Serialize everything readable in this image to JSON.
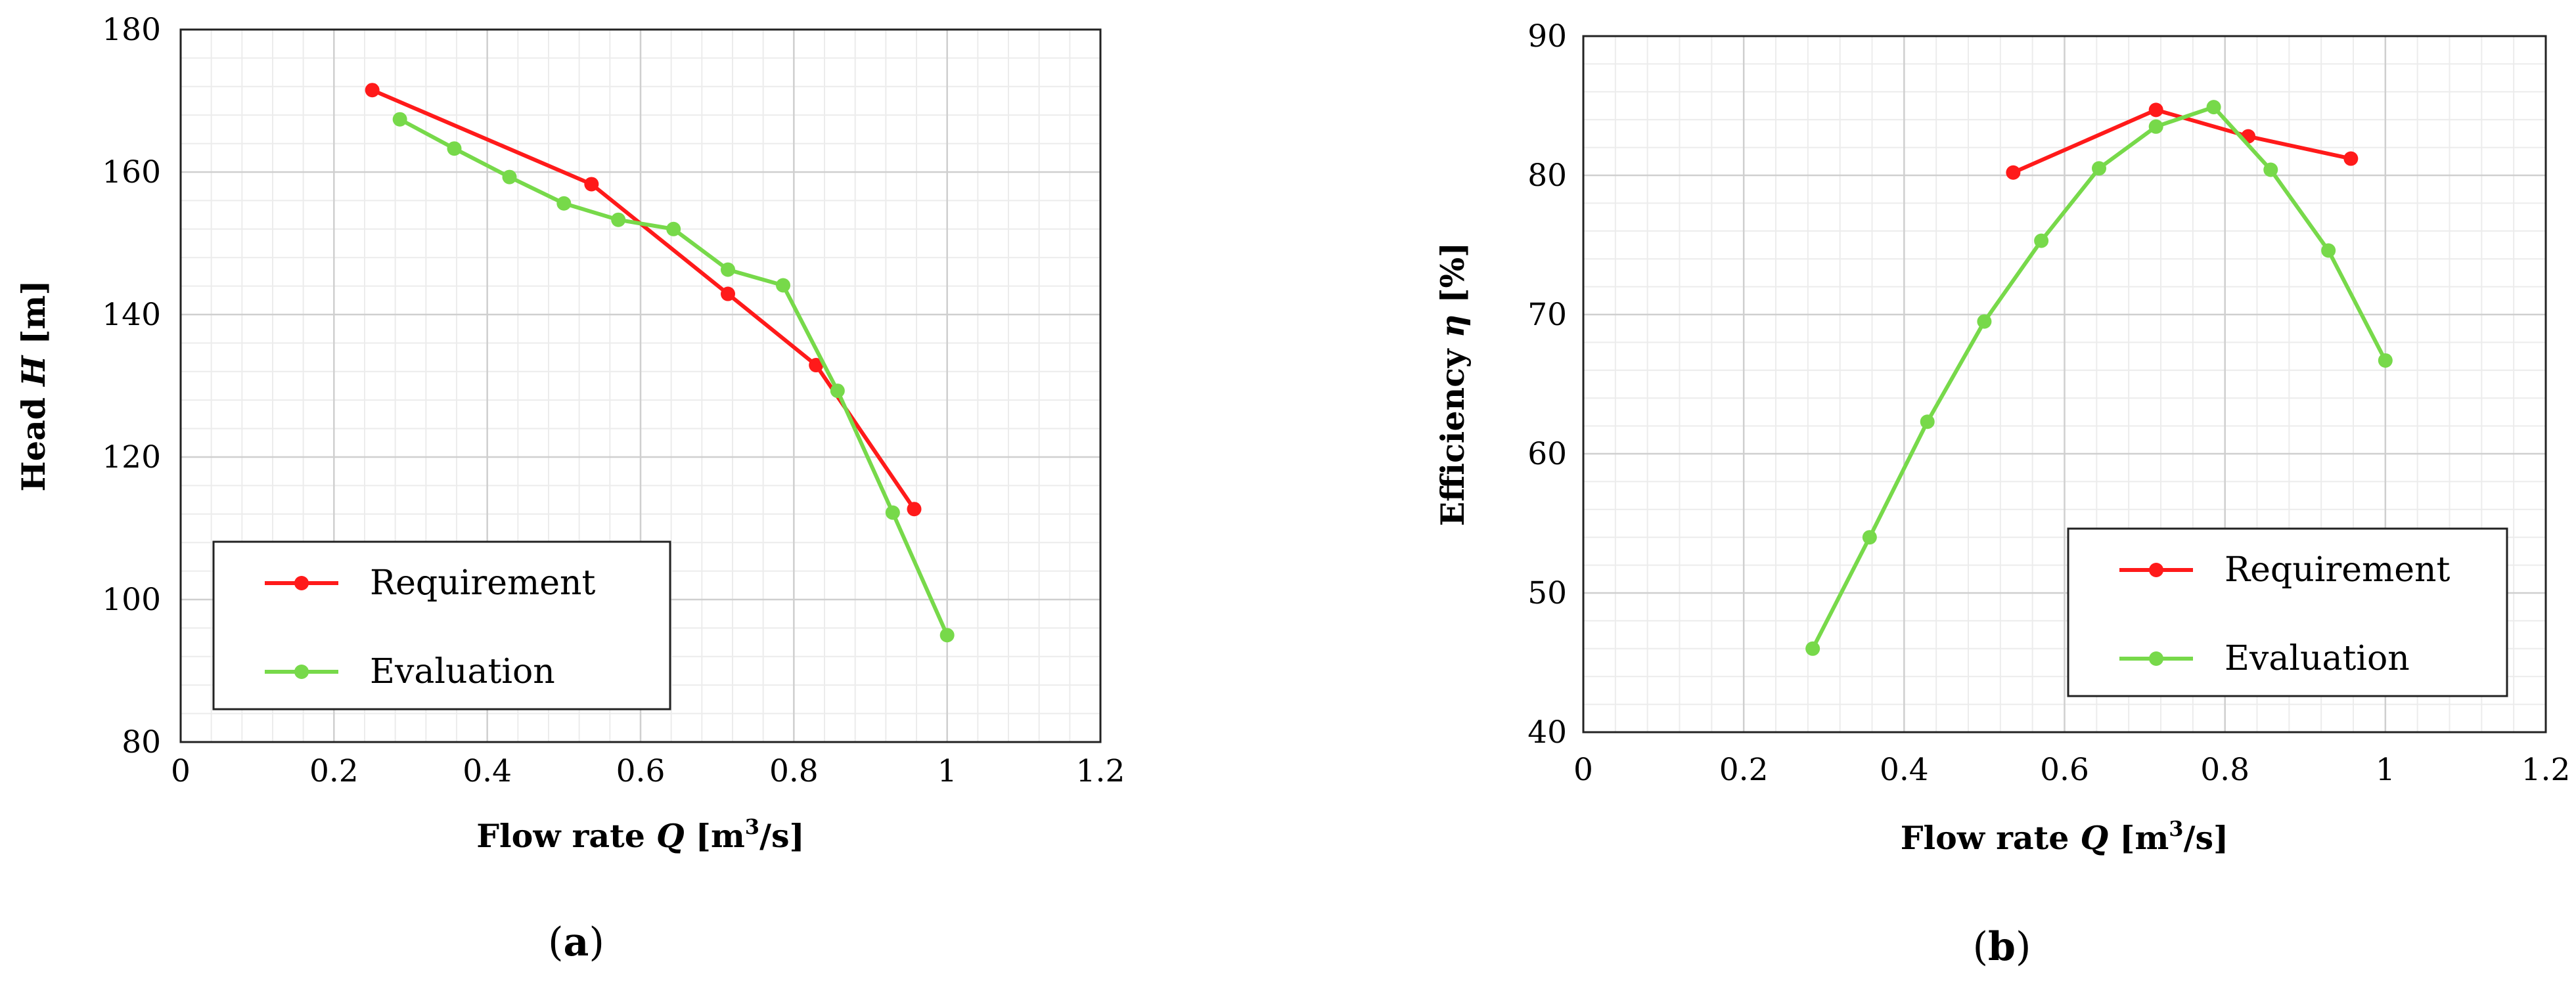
{
  "chart_data": [
    {
      "type": "line",
      "panel_label": "(a)",
      "xlabel": {
        "pre": "Flow rate ",
        "var": "Q",
        "mid": " [m",
        "sup": "3",
        "post": "/s]"
      },
      "ylabel": {
        "pre": "Head ",
        "var": "H",
        "post": " [m]"
      },
      "xlim": [
        0,
        1.2
      ],
      "ylim": [
        80,
        180
      ],
      "xticks": [
        0,
        0.2,
        0.4,
        0.6,
        0.8,
        1,
        1.2
      ],
      "xtick_labels": [
        "0",
        "0.2",
        "0.4",
        "0.6",
        "0.8",
        "1",
        "1.2"
      ],
      "yticks": [
        80,
        100,
        120,
        140,
        160,
        180
      ],
      "ytick_labels": [
        "80",
        "100",
        "120",
        "140",
        "160",
        "180"
      ],
      "grid": true,
      "legend_position": "lower-left",
      "series": [
        {
          "name": "Requirement",
          "color": "#ff1a1a",
          "x": [
            0.25,
            0.536,
            0.714,
            0.829,
            0.957
          ],
          "y": [
            171.5,
            158.3,
            142.9,
            132.9,
            112.7
          ]
        },
        {
          "name": "Evaluation",
          "color": "#77d94a",
          "x": [
            0.286,
            0.357,
            0.429,
            0.5,
            0.571,
            0.643,
            0.714,
            0.786,
            0.857,
            0.929,
            1.0
          ],
          "y": [
            167.4,
            163.3,
            159.3,
            155.6,
            153.3,
            152.0,
            146.3,
            144.1,
            129.3,
            112.2,
            95.0
          ]
        }
      ]
    },
    {
      "type": "line",
      "panel_label": "(b)",
      "xlabel": {
        "pre": "Flow rate ",
        "var": "Q",
        "mid": " [m",
        "sup": "3",
        "post": "/s]"
      },
      "ylabel": {
        "pre": "Efficiency ",
        "var": "η",
        "post": " [%]"
      },
      "xlim": [
        0,
        1.2
      ],
      "ylim": [
        40,
        90
      ],
      "xticks": [
        0,
        0.2,
        0.4,
        0.6,
        0.8,
        1,
        1.2
      ],
      "xtick_labels": [
        "0",
        "0.2",
        "0.4",
        "0.6",
        "0.8",
        "1",
        "1.2"
      ],
      "yticks": [
        40,
        50,
        60,
        70,
        80,
        90
      ],
      "ytick_labels": [
        "40",
        "50",
        "60",
        "70",
        "80",
        "90"
      ],
      "grid": true,
      "legend_position": "lower-right",
      "series": [
        {
          "name": "Requirement",
          "color": "#ff1a1a",
          "x": [
            0.536,
            0.714,
            0.829,
            0.957
          ],
          "y": [
            80.2,
            84.7,
            82.8,
            81.2
          ]
        },
        {
          "name": "Evaluation",
          "color": "#77d94a",
          "x": [
            0.286,
            0.357,
            0.429,
            0.5,
            0.571,
            0.643,
            0.714,
            0.786,
            0.857,
            0.929,
            1.0
          ],
          "y": [
            46.0,
            54.0,
            62.3,
            69.5,
            75.3,
            80.5,
            83.5,
            84.9,
            80.4,
            74.6,
            66.7
          ]
        }
      ]
    }
  ]
}
